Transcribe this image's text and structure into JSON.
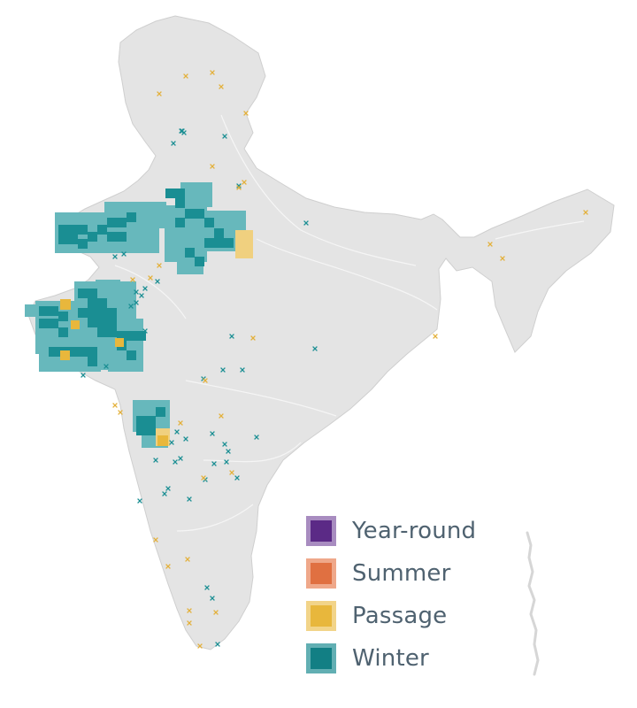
{
  "map": {
    "land_color": "#e4e4e4",
    "land_stroke": "#cfcfcf",
    "water_line_color": "#f7f7f7",
    "marker_symbol": "x"
  },
  "legend": {
    "items": [
      {
        "key": "year_round",
        "label": "Year-round",
        "fill": "#5b2a86",
        "border": "#a88cc0"
      },
      {
        "key": "summer",
        "label": "Summer",
        "fill": "#e07041",
        "border": "#efa88a"
      },
      {
        "key": "passage",
        "label": "Passage",
        "fill": "#e8b73c",
        "border": "#f2d489"
      },
      {
        "key": "winter",
        "label": "Winter",
        "fill": "#127f84",
        "border": "#62afb3"
      }
    ]
  },
  "occurrence": {
    "cell_colors": {
      "winter": "#1a8e93",
      "winter_light": "#67b8bc",
      "passage": "#e8b73c",
      "passage_light": "#f0d07f"
    }
  }
}
